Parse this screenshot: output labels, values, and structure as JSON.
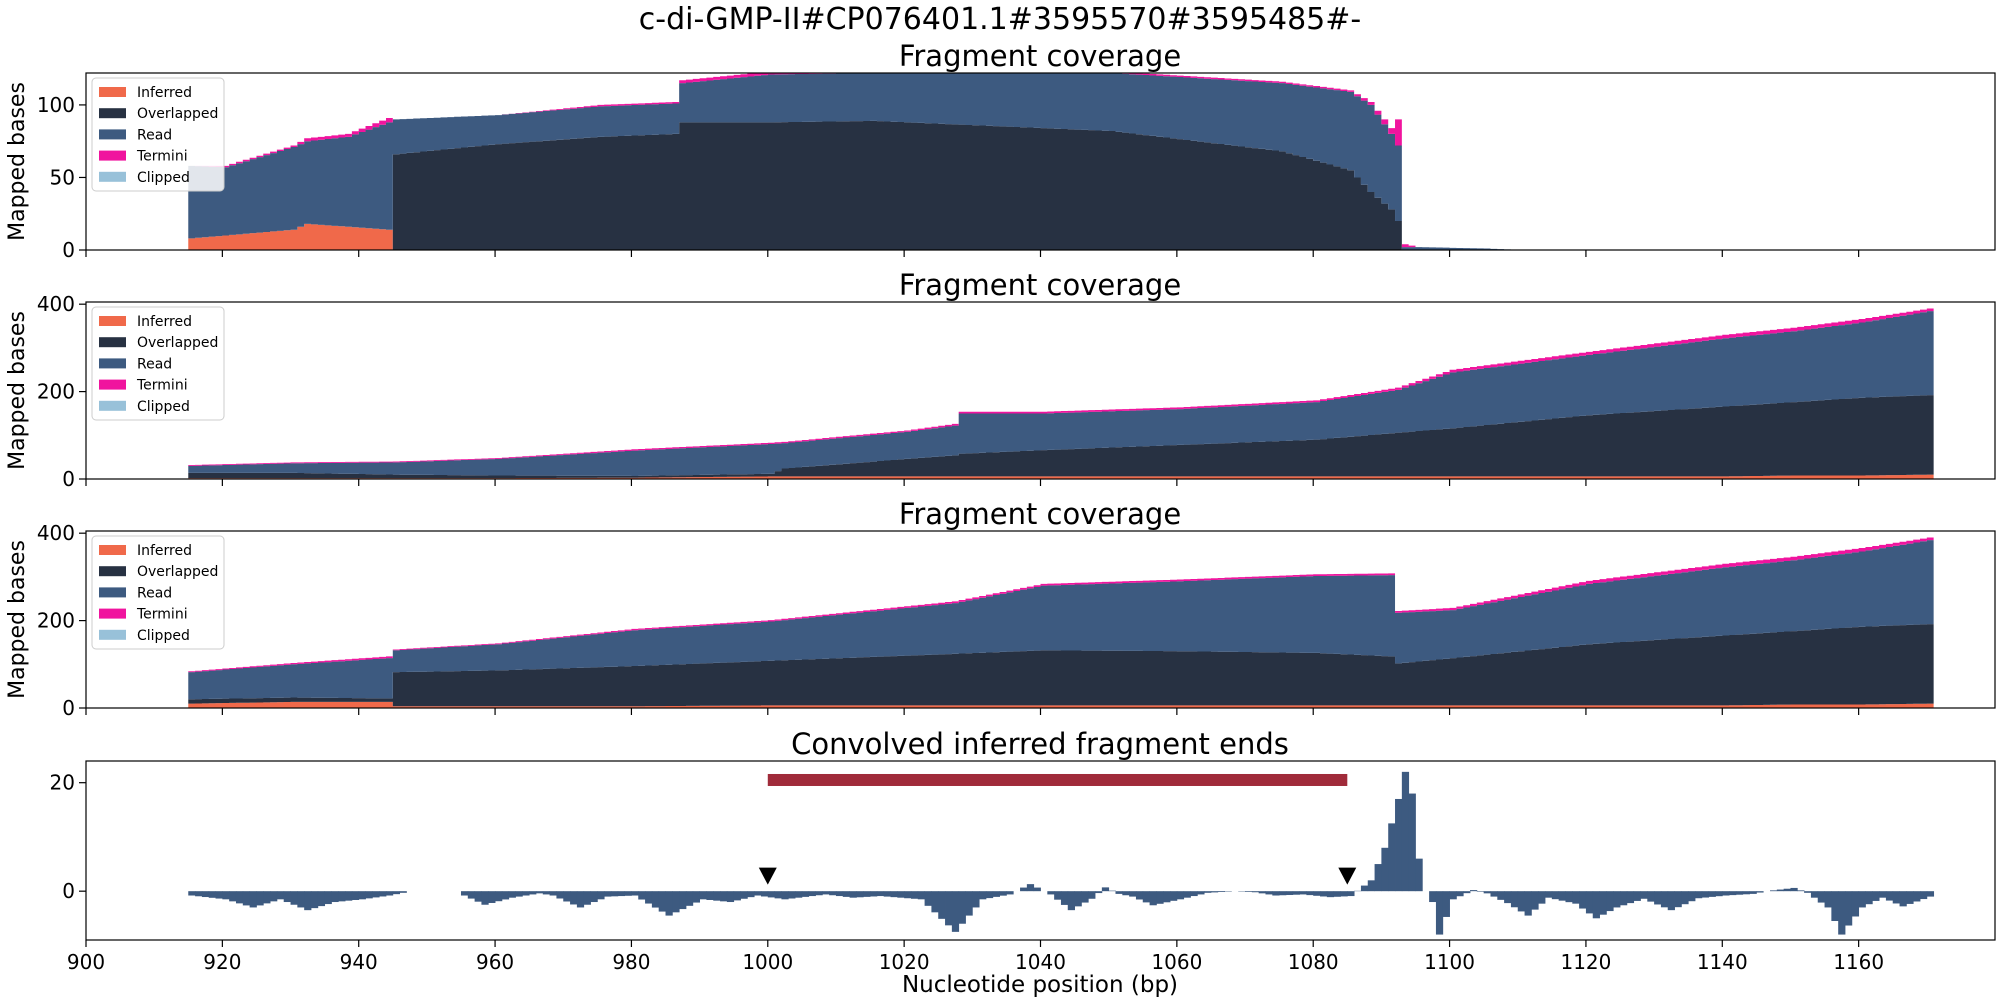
{
  "figure": {
    "suptitle": "c-di-GMP-II#CP076401.1#3595570#3595485#-",
    "xlabel": "Nucleotide position (bp)"
  },
  "colors": {
    "inferred": "#f0694a",
    "overlapped": "#273142",
    "read": "#3d5a80",
    "termini": "#f0149e",
    "clipped": "#98c1d9",
    "interval": "#a02b3a",
    "marker": "#000000"
  },
  "chart_data": [
    {
      "type": "area",
      "title": "Fragment coverage",
      "ylabel": "Mapped bases",
      "xlim": [
        900,
        1180
      ],
      "ylim": [
        0,
        122
      ],
      "xticks": [
        900,
        920,
        940,
        960,
        980,
        1000,
        1020,
        1040,
        1060,
        1080,
        1100,
        1120,
        1140,
        1160
      ],
      "yticks": [
        0,
        50,
        100
      ],
      "legend": {
        "position": "upper-left",
        "entries": [
          "Inferred",
          "Overlapped",
          "Read",
          "Termini",
          "Clipped"
        ]
      },
      "knots": [
        [
          915,
          8,
          0,
          50,
          0
        ],
        [
          920,
          10,
          0,
          47,
          1
        ],
        [
          930,
          14,
          0,
          57,
          1
        ],
        [
          932,
          18,
          0,
          57,
          2
        ],
        [
          938,
          16,
          0,
          62,
          2
        ],
        [
          944,
          14,
          0,
          74,
          3
        ],
        [
          945,
          0,
          66,
          24,
          0
        ],
        [
          960,
          0,
          73,
          20,
          0
        ],
        [
          975,
          0,
          78,
          21,
          1
        ],
        [
          986,
          0,
          80,
          21,
          1
        ],
        [
          987,
          0,
          88,
          27,
          2
        ],
        [
          1000,
          0,
          88,
          33,
          2
        ],
        [
          1015,
          0,
          89,
          33,
          1
        ],
        [
          1050,
          0,
          82,
          40,
          1
        ],
        [
          1075,
          0,
          68,
          47,
          1
        ],
        [
          1085,
          0,
          55,
          54,
          1
        ],
        [
          1088,
          0,
          40,
          60,
          2
        ],
        [
          1091,
          0,
          28,
          52,
          4
        ],
        [
          1092,
          0,
          20,
          52,
          18
        ],
        [
          1093,
          0,
          0,
          2,
          2
        ],
        [
          1095,
          0,
          0,
          2,
          0
        ],
        [
          1105,
          0,
          0,
          1,
          0
        ],
        [
          1110,
          0,
          0,
          0,
          0
        ]
      ]
    },
    {
      "type": "area",
      "title": "Fragment coverage",
      "ylabel": "Mapped bases",
      "xlim": [
        900,
        1180
      ],
      "ylim": [
        0,
        405
      ],
      "xticks": [
        900,
        920,
        940,
        960,
        980,
        1000,
        1020,
        1040,
        1060,
        1080,
        1100,
        1120,
        1140,
        1160
      ],
      "yticks": [
        0,
        200,
        400
      ],
      "legend": {
        "position": "upper-left",
        "entries": [
          "Inferred",
          "Overlapped",
          "Read",
          "Termini",
          "Clipped"
        ]
      },
      "knots": [
        [
          915,
          2,
          12,
          16,
          2
        ],
        [
          930,
          2,
          12,
          22,
          2
        ],
        [
          945,
          2,
          8,
          28,
          2
        ],
        [
          960,
          2,
          6,
          38,
          2
        ],
        [
          980,
          3,
          4,
          58,
          3
        ],
        [
          1000,
          6,
          6,
          68,
          3
        ],
        [
          1002,
          6,
          18,
          58,
          3
        ],
        [
          1020,
          6,
          40,
          62,
          3
        ],
        [
          1027,
          6,
          48,
          68,
          4
        ],
        [
          1028,
          6,
          52,
          92,
          4
        ],
        [
          1040,
          6,
          60,
          84,
          4
        ],
        [
          1060,
          6,
          72,
          82,
          4
        ],
        [
          1080,
          6,
          84,
          86,
          4
        ],
        [
          1092,
          6,
          100,
          98,
          5
        ],
        [
          1100,
          6,
          110,
          128,
          6
        ],
        [
          1120,
          6,
          140,
          138,
          7
        ],
        [
          1140,
          6,
          160,
          156,
          8
        ],
        [
          1150,
          8,
          168,
          162,
          8
        ],
        [
          1160,
          8,
          178,
          172,
          8
        ],
        [
          1170,
          10,
          182,
          192,
          6
        ]
      ]
    },
    {
      "type": "area",
      "title": "Fragment coverage",
      "ylabel": "Mapped bases",
      "xlim": [
        900,
        1180
      ],
      "ylim": [
        0,
        405
      ],
      "xticks": [
        900,
        920,
        940,
        960,
        980,
        1000,
        1020,
        1040,
        1060,
        1080,
        1100,
        1120,
        1140,
        1160
      ],
      "yticks": [
        0,
        200,
        400
      ],
      "legend": {
        "position": "upper-left",
        "entries": [
          "Inferred",
          "Overlapped",
          "Read",
          "Termini",
          "Clipped"
        ]
      },
      "knots": [
        [
          915,
          10,
          10,
          62,
          2
        ],
        [
          930,
          14,
          10,
          76,
          3
        ],
        [
          944,
          14,
          8,
          92,
          4
        ],
        [
          945,
          4,
          78,
          50,
          2
        ],
        [
          960,
          4,
          82,
          60,
          2
        ],
        [
          980,
          4,
          92,
          82,
          3
        ],
        [
          1000,
          6,
          102,
          90,
          3
        ],
        [
          1027,
          6,
          118,
          116,
          4
        ],
        [
          1040,
          6,
          126,
          148,
          4
        ],
        [
          1060,
          6,
          124,
          160,
          4
        ],
        [
          1080,
          6,
          120,
          176,
          4
        ],
        [
          1091,
          6,
          112,
          186,
          4
        ],
        [
          1092,
          6,
          96,
          116,
          4
        ],
        [
          1100,
          6,
          108,
          110,
          5
        ],
        [
          1120,
          6,
          140,
          138,
          7
        ],
        [
          1140,
          6,
          160,
          156,
          8
        ],
        [
          1150,
          8,
          168,
          162,
          8
        ],
        [
          1160,
          8,
          178,
          172,
          8
        ],
        [
          1170,
          10,
          182,
          192,
          6
        ]
      ]
    },
    {
      "type": "bar",
      "title": "Convolved inferred fragment ends",
      "ylabel": "",
      "xlim": [
        900,
        1180
      ],
      "ylim": [
        -9,
        24
      ],
      "xticks": [
        900,
        920,
        940,
        960,
        980,
        1000,
        1020,
        1040,
        1060,
        1080,
        1100,
        1120,
        1140,
        1160
      ],
      "yticks": [
        0,
        20
      ],
      "interval": [
        1000,
        1085
      ],
      "interval_y": 20.5,
      "markers": [
        1000,
        1085
      ],
      "marker_y": 1.2,
      "bars": [
        [
          915,
          -0.8
        ],
        [
          920,
          -1.5
        ],
        [
          924,
          -3
        ],
        [
          928,
          -1.5
        ],
        [
          932,
          -3.5
        ],
        [
          936,
          -2
        ],
        [
          940,
          -1.5
        ],
        [
          944,
          -0.8
        ],
        [
          946,
          -0.3
        ],
        [
          947,
          0
        ],
        [
          954,
          0
        ],
        [
          955,
          -0.8
        ],
        [
          958,
          -2.5
        ],
        [
          962,
          -1.2
        ],
        [
          966,
          -0.4
        ],
        [
          968,
          -0.8
        ],
        [
          972,
          -3
        ],
        [
          976,
          -1
        ],
        [
          980,
          -0.8
        ],
        [
          985,
          -4.5
        ],
        [
          990,
          -1.5
        ],
        [
          994,
          -2
        ],
        [
          998,
          -0.8
        ],
        [
          1002,
          -1.5
        ],
        [
          1008,
          -0.6
        ],
        [
          1012,
          -1.2
        ],
        [
          1016,
          -0.9
        ],
        [
          1022,
          -1.5
        ],
        [
          1027,
          -7.5
        ],
        [
          1031,
          -1.5
        ],
        [
          1035,
          -0.6
        ],
        [
          1038,
          1.3
        ],
        [
          1041,
          -0.6
        ],
        [
          1044,
          -3.5
        ],
        [
          1047,
          -1.4
        ],
        [
          1049,
          0.7
        ],
        [
          1051,
          -0.5
        ],
        [
          1053,
          -1
        ],
        [
          1056,
          -2.6
        ],
        [
          1060,
          -1.5
        ],
        [
          1064,
          -0.3
        ],
        [
          1068,
          0
        ],
        [
          1071,
          -0.2
        ],
        [
          1074,
          -0.8
        ],
        [
          1078,
          -0.6
        ],
        [
          1082,
          -1.1
        ],
        [
          1085,
          -0.9
        ],
        [
          1088,
          2
        ],
        [
          1090,
          8
        ],
        [
          1092,
          17
        ],
        [
          1093,
          22
        ],
        [
          1094,
          18
        ],
        [
          1095,
          6
        ],
        [
          1096,
          0
        ],
        [
          1097,
          -2
        ],
        [
          1098,
          -8
        ],
        [
          1100,
          -1.5
        ],
        [
          1103,
          0.2
        ],
        [
          1105,
          -0.4
        ],
        [
          1108,
          -2.2
        ],
        [
          1111,
          -4.5
        ],
        [
          1114,
          -1.2
        ],
        [
          1118,
          -2.3
        ],
        [
          1121,
          -5
        ],
        [
          1124,
          -3
        ],
        [
          1128,
          -1.4
        ],
        [
          1132,
          -3.5
        ],
        [
          1136,
          -1.3
        ],
        [
          1140,
          -0.8
        ],
        [
          1144,
          -0.5
        ],
        [
          1146,
          0
        ],
        [
          1150,
          0.6
        ],
        [
          1152,
          -0.3
        ],
        [
          1155,
          -3
        ],
        [
          1157,
          -8
        ],
        [
          1160,
          -3
        ],
        [
          1163,
          -1.2
        ],
        [
          1166,
          -2.8
        ],
        [
          1170,
          -1
        ]
      ]
    }
  ]
}
